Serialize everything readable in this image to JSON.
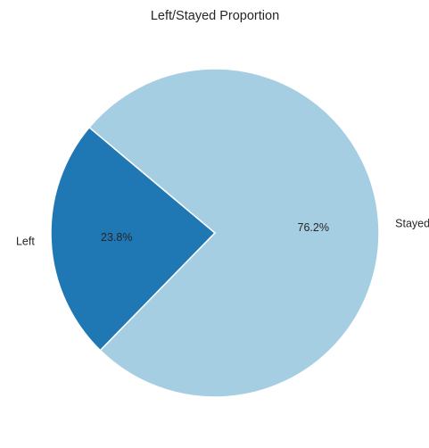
{
  "chart_data": {
    "type": "pie",
    "title": "Left/Stayed Proportion",
    "slices": [
      {
        "label": "Left",
        "value": 23.8,
        "pct_label": "23.8%",
        "color": "#1f78b4"
      },
      {
        "label": "Stayed",
        "value": 76.2,
        "pct_label": "76.2%",
        "color": "#a6cee3"
      }
    ],
    "start_angle_deg": 140,
    "direction": "counterclockwise",
    "edge_color": "#ffffff"
  }
}
